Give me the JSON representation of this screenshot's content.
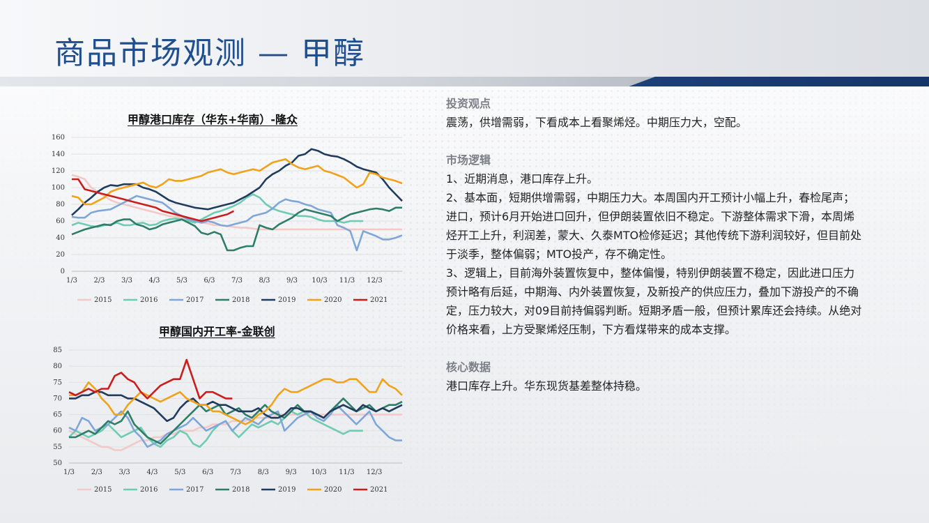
{
  "page": {
    "title": "商品市场观测 — 甲醇"
  },
  "colors": {
    "title": "#1f4e8c",
    "bar": "#1b3f77",
    "section_head": "#7b7f87"
  },
  "analysis": {
    "sections": [
      {
        "heading": "投资观点",
        "paragraphs": [
          "震荡，供增需弱，下看成本上看聚烯烃。中期压力大，空配。"
        ]
      },
      {
        "heading": "市场逻辑",
        "paragraphs": [
          "1、近期消息，港口库存上升。",
          "2、基本面，短期供增需弱，中期压力大。本周国内开工预计小幅上升，春检尾声；进口，预计6月开始进口回升，但伊朗装置依旧不稳定。下游整体需求下滑，本周烯烃开工上升，利润差，蒙大、久泰MTO检修延迟；其他传统下游利润较好，但目前处于淡季，整体偏弱；MTO投产，存不确定性。",
          "3、逻辑上，目前海外装置恢复中，整体偏慢，特别伊朗装置不稳定，因此进口压力预计略有后延，中期海、内外装置恢复，及新投产的供应压力，叠加下游投产的不确定，压力较大，对09目前持偏弱判断。短期矛盾一般，但预计累库还会持续。从绝对价格来看，上方受聚烯烃压制，下方看煤带来的成本支撑。"
        ]
      },
      {
        "heading": "核心数据",
        "paragraphs": [
          "港口库存上升。华东现货基差整体持稳。"
        ]
      }
    ]
  },
  "chart_data": [
    {
      "type": "line",
      "title": "甲醇港口库存（华东+华南）-隆众",
      "x_ticks": [
        "1/3",
        "2/3",
        "3/3",
        "4/3",
        "5/3",
        "6/3",
        "7/3",
        "8/3",
        "9/3",
        "10/3",
        "11/3",
        "12/3"
      ],
      "y_ticks": [
        0,
        20,
        40,
        60,
        80,
        100,
        120,
        140,
        160
      ],
      "ylim": [
        0,
        160
      ],
      "xlim": [
        0,
        51
      ],
      "series": [
        {
          "name": "2015",
          "color": "#f2c9c9",
          "values": [
            115,
            113,
            110,
            100,
            95,
            90,
            85,
            82,
            80,
            78,
            76,
            74,
            72,
            70,
            68,
            66,
            65,
            64,
            62,
            60,
            58,
            57,
            55,
            55,
            54,
            53,
            52,
            52,
            51,
            50,
            50,
            50,
            50,
            50,
            50,
            50,
            50,
            50,
            50,
            50,
            50,
            50,
            50,
            50,
            50,
            50,
            50,
            50,
            50,
            50,
            50,
            50
          ]
        },
        {
          "name": "2016",
          "color": "#6fcbb3",
          "values": [
            55,
            58,
            56,
            54,
            53,
            55,
            56,
            58,
            55,
            55,
            57,
            58,
            55,
            56,
            60,
            62,
            63,
            62,
            60,
            58,
            62,
            66,
            70,
            72,
            75,
            78,
            82,
            88,
            92,
            88,
            80,
            75,
            72,
            70,
            68,
            66,
            66,
            65,
            62,
            60,
            60,
            60,
            58,
            60,
            60,
            60,
            null,
            null,
            null,
            null,
            null,
            null
          ]
        },
        {
          "name": "2017",
          "color": "#7ea6d6",
          "values": [
            65,
            64,
            64,
            70,
            72,
            73,
            74,
            78,
            82,
            86,
            90,
            88,
            86,
            84,
            82,
            76,
            70,
            66,
            62,
            60,
            58,
            60,
            58,
            55,
            54,
            56,
            58,
            60,
            66,
            68,
            70,
            75,
            82,
            86,
            84,
            83,
            80,
            78,
            74,
            72,
            70,
            55,
            52,
            48,
            25,
            48,
            45,
            42,
            38,
            38,
            40,
            43
          ]
        },
        {
          "name": "2018",
          "color": "#2e7d68",
          "values": [
            44,
            47,
            50,
            52,
            54,
            56,
            55,
            60,
            62,
            62,
            56,
            54,
            50,
            52,
            56,
            58,
            60,
            62,
            58,
            54,
            46,
            44,
            47,
            44,
            25,
            25,
            28,
            30,
            30,
            55,
            52,
            50,
            56,
            60,
            64,
            70,
            74,
            72,
            70,
            68,
            66,
            60,
            64,
            68,
            70,
            72,
            74,
            75,
            74,
            72,
            76,
            76
          ]
        },
        {
          "name": "2019",
          "color": "#1f3b5e",
          "values": [
            67,
            74,
            82,
            88,
            95,
            100,
            103,
            102,
            104,
            104,
            104,
            100,
            98,
            95,
            90,
            85,
            82,
            80,
            78,
            76,
            75,
            74,
            76,
            78,
            80,
            82,
            86,
            90,
            95,
            100,
            110,
            116,
            120,
            126,
            130,
            138,
            140,
            146,
            144,
            140,
            138,
            137,
            134,
            130,
            125,
            122,
            120,
            118,
            110,
            100,
            92,
            84
          ]
        },
        {
          "name": "2020",
          "color": "#f0a21a",
          "values": [
            90,
            88,
            80,
            80,
            84,
            88,
            95,
            98,
            100,
            102,
            104,
            106,
            102,
            100,
            104,
            110,
            108,
            108,
            110,
            112,
            114,
            118,
            120,
            122,
            118,
            116,
            118,
            120,
            122,
            120,
            125,
            130,
            132,
            134,
            128,
            124,
            122,
            124,
            126,
            120,
            118,
            115,
            112,
            106,
            100,
            104,
            118,
            116,
            112,
            110,
            108,
            105
          ]
        },
        {
          "name": "2021",
          "color": "#c81e1e",
          "values": [
            110,
            110,
            98,
            96,
            94,
            92,
            90,
            88,
            86,
            84,
            82,
            80,
            78,
            76,
            72,
            70,
            68,
            66,
            64,
            62,
            60,
            62,
            64,
            66,
            68,
            72,
            null,
            null,
            null,
            null,
            null,
            null,
            null,
            null,
            null,
            null,
            null,
            null,
            null,
            null,
            null,
            null,
            null,
            null,
            null,
            null,
            null,
            null,
            null,
            null,
            null,
            null
          ]
        }
      ]
    },
    {
      "type": "line",
      "title": "甲醇国内开工率-金联创",
      "x_ticks": [
        "1/3",
        "2/3",
        "3/3",
        "4/3",
        "5/3",
        "6/3",
        "7/3",
        "8/3",
        "9/3",
        "10/3",
        "11/3",
        "12/3"
      ],
      "y_ticks": [
        50,
        55,
        60,
        65,
        70,
        75,
        80,
        85
      ],
      "ylim": [
        50,
        85
      ],
      "xlim": [
        0,
        51
      ],
      "series": [
        {
          "name": "2015",
          "color": "#f2c9c9",
          "values": [
            60,
            59,
            58,
            57,
            56,
            55,
            55,
            54,
            54,
            55,
            56,
            57,
            57,
            58,
            58,
            59,
            59,
            60,
            60,
            60,
            61,
            61,
            62,
            62,
            62,
            63,
            63,
            63,
            64,
            64,
            64,
            64,
            65,
            65,
            65,
            65,
            65,
            65,
            65,
            65,
            65,
            65,
            65,
            65,
            65,
            65,
            65,
            65,
            65,
            65,
            65,
            65
          ]
        },
        {
          "name": "2016",
          "color": "#6fcbb3",
          "values": [
            58,
            60,
            59,
            58,
            59,
            60,
            62,
            60,
            58,
            59,
            60,
            61,
            58,
            56,
            55,
            57,
            58,
            60,
            59,
            56,
            55,
            57,
            60,
            62,
            63,
            60,
            58,
            60,
            62,
            61,
            62,
            63,
            62,
            64,
            66,
            65,
            66,
            64,
            63,
            62,
            61,
            60,
            59,
            60,
            60,
            60,
            null,
            null,
            null,
            null,
            null,
            null
          ]
        },
        {
          "name": "2017",
          "color": "#7ea6d6",
          "values": [
            61,
            60,
            64,
            63,
            60,
            61,
            62,
            64,
            66,
            64,
            60,
            58,
            55,
            56,
            57,
            59,
            60,
            61,
            62,
            64,
            62,
            60,
            61,
            62,
            63,
            60,
            62,
            64,
            63,
            62,
            64,
            65,
            66,
            60,
            62,
            64,
            65,
            66,
            64,
            63,
            65,
            68,
            66,
            64,
            62,
            64,
            66,
            62,
            60,
            58,
            57,
            57
          ]
        },
        {
          "name": "2018",
          "color": "#2e7d68",
          "values": [
            58,
            58,
            59,
            60,
            59,
            61,
            63,
            62,
            63,
            66,
            62,
            60,
            58,
            57,
            56,
            58,
            60,
            62,
            64,
            66,
            68,
            66,
            67,
            68,
            65,
            66,
            67,
            65,
            64,
            66,
            68,
            66,
            65,
            64,
            66,
            68,
            66,
            66,
            65,
            64,
            66,
            68,
            70,
            68,
            66,
            67,
            68,
            66,
            67,
            68,
            68,
            69
          ]
        },
        {
          "name": "2019",
          "color": "#1f3b5e",
          "values": [
            70,
            70,
            71,
            71,
            72,
            72,
            71,
            71,
            71,
            70,
            70,
            69,
            68,
            67,
            65,
            63,
            64,
            67,
            69,
            70,
            68,
            68,
            69,
            68,
            68,
            67,
            66,
            66,
            66,
            67,
            65,
            64,
            64,
            65,
            67,
            67,
            66,
            66,
            65,
            64,
            66,
            67,
            68,
            67,
            66,
            68,
            67,
            66,
            67,
            66,
            67,
            68
          ]
        },
        {
          "name": "2020",
          "color": "#f0a21a",
          "values": [
            71,
            71,
            72,
            75,
            73,
            70,
            68,
            65,
            65,
            68,
            70,
            72,
            71,
            70,
            69,
            70,
            71,
            72,
            70,
            69,
            68,
            68,
            66,
            66,
            65,
            64,
            63,
            62,
            63,
            65,
            66,
            68,
            71,
            73,
            72,
            72,
            73,
            74,
            75,
            76,
            76,
            75,
            75,
            76,
            76,
            74,
            72,
            72,
            76,
            74,
            73,
            71
          ]
        },
        {
          "name": "2021",
          "color": "#c81e1e",
          "values": [
            72,
            71,
            72,
            73,
            72,
            73,
            73,
            77,
            78,
            76,
            75,
            72,
            70,
            72,
            74,
            75,
            76,
            76,
            82,
            76,
            70,
            72,
            72,
            71,
            70,
            70,
            null,
            null,
            null,
            null,
            null,
            null,
            null,
            null,
            null,
            null,
            null,
            null,
            null,
            null,
            null,
            null,
            null,
            null,
            null,
            null,
            null,
            null,
            null,
            null,
            null,
            null
          ]
        }
      ]
    }
  ]
}
